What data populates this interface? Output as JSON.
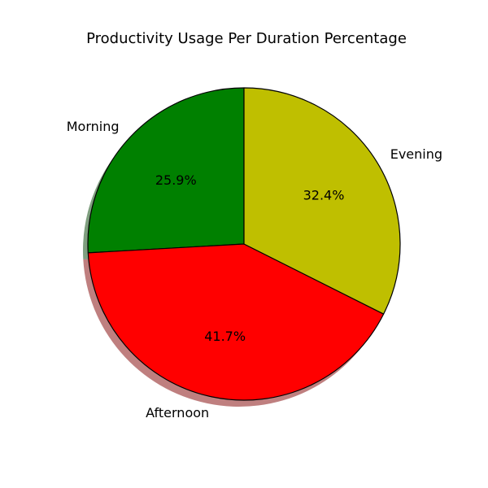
{
  "chart_data": {
    "type": "pie",
    "title": "Productivity Usage Per Duration Percentage",
    "categories": [
      "Morning",
      "Afternoon",
      "Evening"
    ],
    "values": [
      25.9,
      41.7,
      32.4
    ],
    "value_labels": [
      "25.9%",
      "41.7%",
      "32.4%"
    ],
    "colors": [
      "#008000",
      "#ff0000",
      "#bfbf00"
    ],
    "start_angle_deg": 90,
    "direction": "counterclockwise",
    "shadow": true,
    "edge_color": "#000000"
  }
}
